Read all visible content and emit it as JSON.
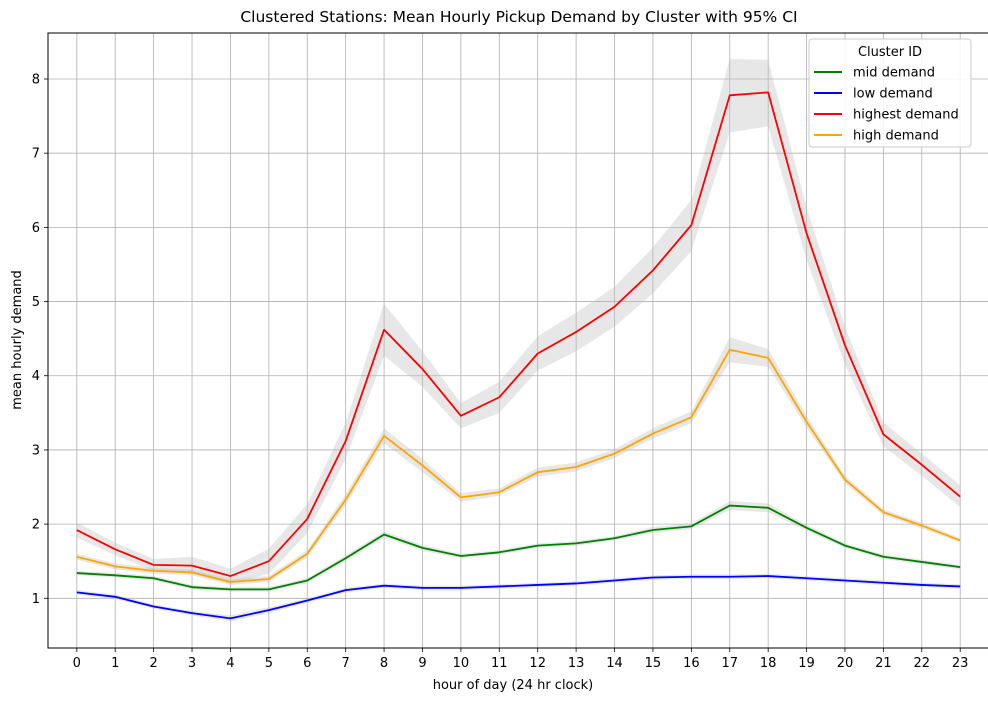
{
  "chart_data": {
    "type": "line",
    "title": "Clustered Stations: Mean Hourly Pickup Demand by Cluster with 95% CI",
    "xlabel": "hour of day (24 hr clock)",
    "ylabel": "mean hourly demand",
    "x": [
      0,
      1,
      2,
      3,
      4,
      5,
      6,
      7,
      8,
      9,
      10,
      11,
      12,
      13,
      14,
      15,
      16,
      17,
      18,
      19,
      20,
      21,
      22,
      23
    ],
    "xticks": [
      "0",
      "1",
      "2",
      "3",
      "4",
      "5",
      "6",
      "7",
      "8",
      "9",
      "10",
      "11",
      "12",
      "13",
      "14",
      "15",
      "16",
      "17",
      "18",
      "19",
      "20",
      "21",
      "22",
      "23"
    ],
    "yticks": [
      "1",
      "2",
      "3",
      "4",
      "5",
      "6",
      "7",
      "8"
    ],
    "xlim": [
      -0.75,
      23.75
    ],
    "ylim": [
      0.33,
      8.62
    ],
    "grid": true,
    "legend": {
      "title": "Cluster ID",
      "position": "top-right"
    },
    "ci_color": "#bbbbbb",
    "series": [
      {
        "name": "mid demand",
        "color": "#008000",
        "values": [
          1.34,
          1.31,
          1.27,
          1.15,
          1.12,
          1.12,
          1.24,
          1.54,
          1.86,
          1.68,
          1.57,
          1.62,
          1.71,
          1.74,
          1.81,
          1.92,
          1.97,
          2.25,
          2.22,
          1.95,
          1.71,
          1.56,
          1.49,
          1.42
        ],
        "ci_lower": [
          1.31,
          1.28,
          1.24,
          1.12,
          1.09,
          1.09,
          1.21,
          1.5,
          1.82,
          1.64,
          1.54,
          1.59,
          1.68,
          1.71,
          1.78,
          1.88,
          1.93,
          2.19,
          2.16,
          1.91,
          1.68,
          1.53,
          1.46,
          1.39
        ],
        "ci_upper": [
          1.37,
          1.34,
          1.3,
          1.18,
          1.15,
          1.15,
          1.27,
          1.58,
          1.9,
          1.72,
          1.6,
          1.65,
          1.74,
          1.77,
          1.84,
          1.96,
          2.01,
          2.31,
          2.28,
          1.99,
          1.74,
          1.59,
          1.52,
          1.45
        ]
      },
      {
        "name": "low demand",
        "color": "#0000ff",
        "values": [
          1.08,
          1.02,
          0.89,
          0.8,
          0.73,
          0.84,
          0.97,
          1.11,
          1.17,
          1.14,
          1.14,
          1.16,
          1.18,
          1.2,
          1.24,
          1.28,
          1.29,
          1.29,
          1.3,
          1.27,
          1.24,
          1.21,
          1.18,
          1.16
        ],
        "ci_lower": [
          1.05,
          0.99,
          0.86,
          0.77,
          0.69,
          0.8,
          0.94,
          1.08,
          1.14,
          1.11,
          1.11,
          1.13,
          1.15,
          1.17,
          1.21,
          1.25,
          1.26,
          1.26,
          1.27,
          1.24,
          1.21,
          1.18,
          1.15,
          1.13
        ],
        "ci_upper": [
          1.11,
          1.05,
          0.92,
          0.83,
          0.77,
          0.88,
          1.0,
          1.14,
          1.2,
          1.17,
          1.17,
          1.19,
          1.21,
          1.23,
          1.27,
          1.31,
          1.32,
          1.32,
          1.33,
          1.3,
          1.27,
          1.24,
          1.21,
          1.19
        ]
      },
      {
        "name": "highest demand",
        "color": "#ff0000",
        "values": [
          1.92,
          1.66,
          1.45,
          1.44,
          1.3,
          1.5,
          2.07,
          3.12,
          4.62,
          4.09,
          3.46,
          3.71,
          4.3,
          4.59,
          4.93,
          5.42,
          6.03,
          7.78,
          7.82,
          5.92,
          4.41,
          3.21,
          2.8,
          2.37
        ],
        "ci_lower": [
          1.82,
          1.58,
          1.37,
          1.33,
          1.2,
          1.33,
          1.88,
          2.88,
          4.27,
          3.85,
          3.29,
          3.5,
          4.07,
          4.33,
          4.66,
          5.11,
          5.68,
          7.28,
          7.36,
          5.56,
          4.15,
          3.05,
          2.65,
          2.23
        ],
        "ci_upper": [
          2.02,
          1.75,
          1.53,
          1.56,
          1.4,
          1.67,
          2.27,
          3.37,
          4.97,
          4.33,
          3.63,
          3.92,
          4.53,
          4.85,
          5.2,
          5.73,
          6.37,
          8.27,
          8.26,
          6.27,
          4.66,
          3.37,
          2.95,
          2.52
        ]
      },
      {
        "name": "high demand",
        "color": "#ffa500",
        "values": [
          1.56,
          1.43,
          1.37,
          1.35,
          1.22,
          1.26,
          1.6,
          2.33,
          3.19,
          2.79,
          2.36,
          2.43,
          2.7,
          2.77,
          2.95,
          3.22,
          3.44,
          4.35,
          4.24,
          3.38,
          2.6,
          2.16,
          1.98,
          1.78
        ],
        "ci_lower": [
          1.52,
          1.39,
          1.33,
          1.31,
          1.18,
          1.22,
          1.55,
          2.26,
          3.09,
          2.7,
          2.3,
          2.38,
          2.64,
          2.71,
          2.89,
          3.15,
          3.36,
          4.18,
          4.12,
          3.3,
          2.55,
          2.12,
          1.94,
          1.75
        ],
        "ci_upper": [
          1.6,
          1.47,
          1.41,
          1.39,
          1.26,
          1.3,
          1.65,
          2.4,
          3.29,
          2.88,
          2.42,
          2.48,
          2.76,
          2.83,
          3.01,
          3.29,
          3.52,
          4.52,
          4.36,
          3.46,
          2.65,
          2.2,
          2.02,
          1.81
        ]
      }
    ]
  }
}
